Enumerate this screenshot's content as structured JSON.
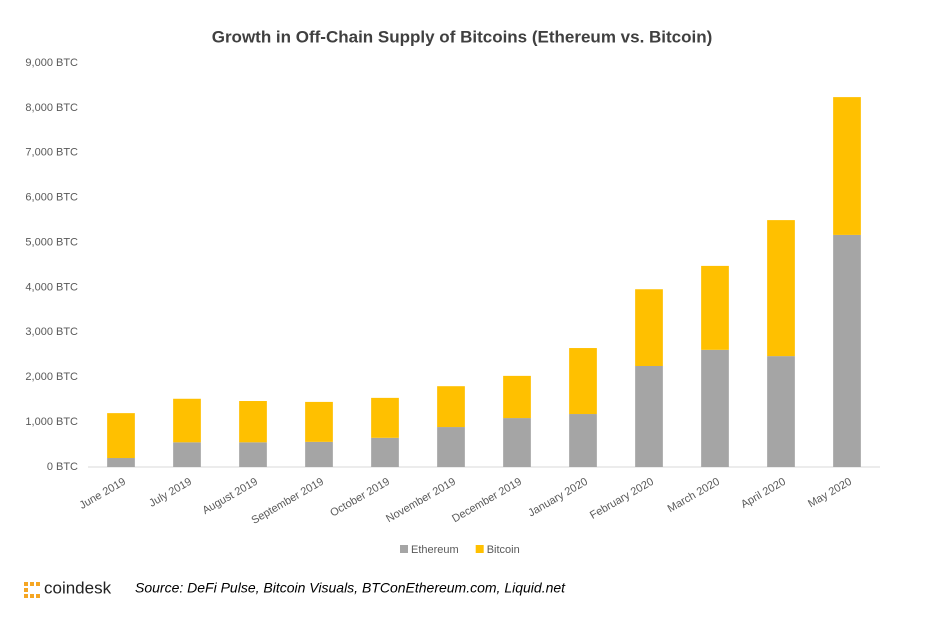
{
  "chart_data": {
    "type": "stacked_bar",
    "title": "Growth in Off-Chain Supply of Bitcoins (Ethereum vs. Bitcoin)",
    "categories": [
      "June 2019",
      "July 2019",
      "August 2019",
      "September 2019",
      "October 2019",
      "November 2019",
      "December 2019",
      "January 2020",
      "February 2020",
      "March 2020",
      "April 2020",
      "May 2020"
    ],
    "series": [
      {
        "name": "Ethereum",
        "color": "#a5a5a5",
        "values": [
          200,
          550,
          550,
          560,
          650,
          890,
          1090,
          1180,
          2250,
          2610,
          2470,
          5170
        ]
      },
      {
        "name": "Bitcoin",
        "color": "#ffc000",
        "values": [
          1000,
          970,
          920,
          890,
          890,
          910,
          940,
          1470,
          1710,
          1870,
          3030,
          3070
        ]
      }
    ],
    "ylim": [
      0,
      9000
    ],
    "yticks": [
      {
        "value": 0,
        "label": "0 BTC"
      },
      {
        "value": 1000,
        "label": "1,000 BTC"
      },
      {
        "value": 2000,
        "label": "2,000 BTC"
      },
      {
        "value": 3000,
        "label": "3,000 BTC"
      },
      {
        "value": 4000,
        "label": "4,000 BTC"
      },
      {
        "value": 5000,
        "label": "5,000 BTC"
      },
      {
        "value": 6000,
        "label": "6,000 BTC"
      },
      {
        "value": 7000,
        "label": "7,000 BTC"
      },
      {
        "value": 8000,
        "label": "8,000 BTC"
      },
      {
        "value": 9000,
        "label": "9,000 BTC"
      }
    ],
    "grid": false,
    "legend": "bottom"
  },
  "footer": {
    "logo": "coindesk",
    "source": "Source: DeFi Pulse, Bitcoin Visuals, BTConEthereum.com, Liquid.net"
  }
}
